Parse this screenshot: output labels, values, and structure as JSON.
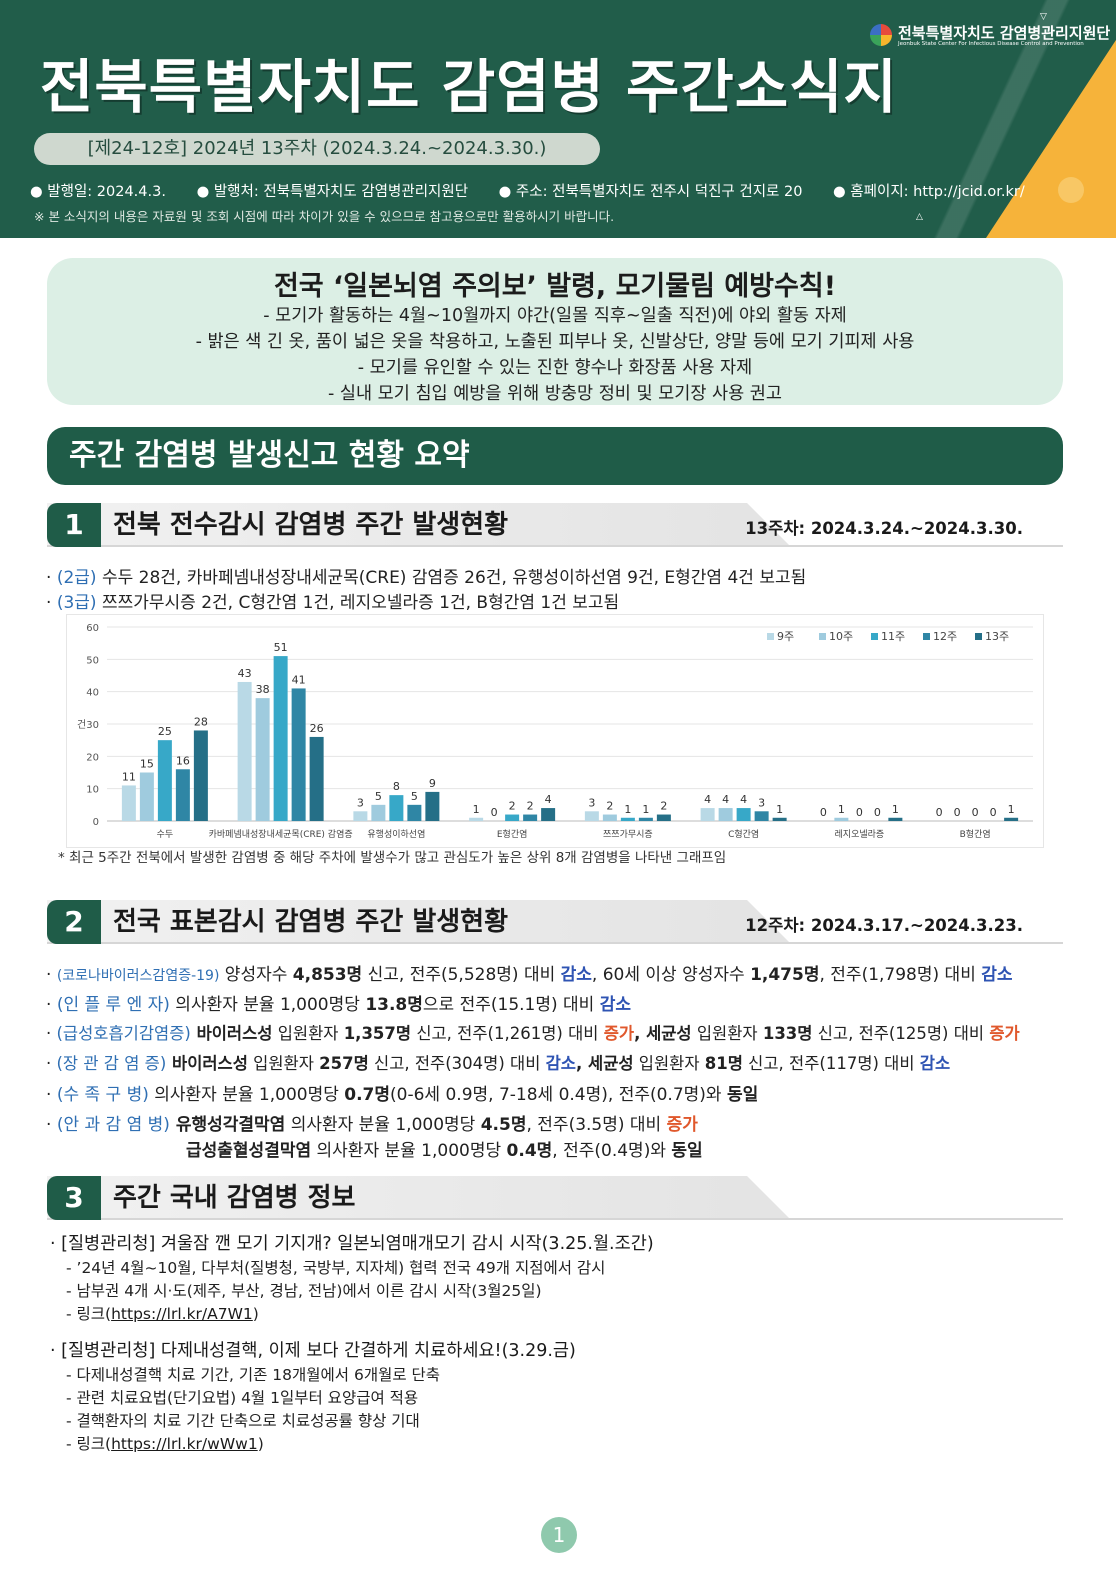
{
  "header": {
    "org_name": "전북특별자치도 감염병관리지원단",
    "org_name_en": "Jeonbuk State Center For Infectious Disease Control and Prevention",
    "title": "전북특별자치도  감염병  주간소식지",
    "issue": "[제24-12호]  2024년  13주차  (2024.3.24.~2024.3.30.)",
    "published": "● 발행일:  2024.4.3.",
    "publisher": "● 발행처:  전북특별자치도  감염병관리지원단",
    "address": "● 주소:  전북특별자치도  전주시  덕진구  건지로  20",
    "homepage": "● 홈페이지:  http://jcid.or.kr/",
    "disclaimer": "※  본  소식지의  내용은  자료원  및  조회  시점에  따라  차이가  있을  수  있으므로  참고용으로만  활용하시기  바랍니다."
  },
  "notice": {
    "title": "전국 ‘일본뇌염 주의보’ 발령, 모기물림 예방수칙!",
    "lines": [
      "- 모기가 활동하는 4월~10월까지 야간(일몰 직후~일출 직전)에 야외 활동 자제",
      "- 밝은 색 긴 옷, 품이 넓은 옷을 착용하고, 노출된 피부나 옷, 신발상단, 양말 등에 모기 기피제 사용",
      "- 모기를 유인할 수 있는 진한 향수나 화장품 사용 자제",
      "- 실내 모기 침입 예방을 위해 방충망 정비 및 모기장 사용 권고"
    ]
  },
  "summary_title": "주간  감염병  발생신고  현황  요약",
  "section1": {
    "num": "1",
    "title": "전북  전수감시  감염병  주간  발생현황",
    "period": "13주차:  2024.3.24.~2024.3.30.",
    "line1_grade": "(2급)",
    "line1_text": " 수두 28건, 카바페넴내성장내세균목(CRE) 감염증 26건, 유행성이하선염 9건, E형간염 4건 보고됨",
    "line2_grade": "(3급)",
    "line2_text": " 쯔쯔가무시증 2건, C형간염 1건, 레지오넬라증 1건, B형간염 1건 보고됨",
    "chart_note": "*  최근  5주간  전북에서  발생한  감염병  중  해당  주차에  발생수가  많고  관심도가  높은  상위  8개  감염병을  나타낸  그래프임"
  },
  "chart_data": {
    "type": "bar",
    "ylabel": "건",
    "ylim": [
      0,
      60
    ],
    "yticks": [
      0,
      10,
      20,
      30,
      40,
      50,
      60
    ],
    "grid": true,
    "legend_position": "top-right",
    "categories": [
      "수두",
      "카바페넴내성장내세균목(CRE) 감염증",
      "유행성이하선염",
      "E형간염",
      "쯔쯔가무시증",
      "C형간염",
      "레지오넬라증",
      "B형간염"
    ],
    "series": [
      {
        "name": "9주",
        "color": "#b9d9e6",
        "values": [
          11,
          43,
          3,
          1,
          3,
          4,
          0,
          0
        ]
      },
      {
        "name": "10주",
        "color": "#9fcbde",
        "values": [
          15,
          38,
          5,
          0,
          2,
          4,
          1,
          0
        ]
      },
      {
        "name": "11주",
        "color": "#37a8c8",
        "values": [
          25,
          51,
          8,
          2,
          1,
          4,
          0,
          0
        ]
      },
      {
        "name": "12주",
        "color": "#2f86a5",
        "values": [
          16,
          41,
          5,
          2,
          1,
          3,
          0,
          0
        ]
      },
      {
        "name": "13주",
        "color": "#256f87",
        "values": [
          28,
          26,
          9,
          4,
          2,
          1,
          1,
          1
        ]
      }
    ]
  },
  "section2": {
    "num": "2",
    "title": "전국  표본감시  감염병  주간  발생현황",
    "period": "12주차:  2024.3.17.~2024.3.23.",
    "rows": [
      {
        "cat": "(코로나바이러스감염증-19)",
        "p1": " 양성자수 ",
        "b1": "4,853명",
        "p2": " 신고, 전주(5,528명) 대비 ",
        "t1": "감소",
        "p3": ", 60세 이상 양성자수 ",
        "b2": "1,475명",
        "p4": ", 전주(1,798명) 대비 ",
        "t2": "감소"
      },
      {
        "cat": "(인 플 루 엔 자)",
        "p1": " 의사환자 분율 1,000명당 ",
        "b1": "13.8명",
        "p2": "으로 전주(15.1명) 대비 ",
        "t1": "감소"
      },
      {
        "cat": "(급성호흡기감염증)",
        "b0": " 바이러스성",
        "p1": " 입원환자 ",
        "b1": "1,357명",
        "p2": " 신고, 전주(1,261명) 대비 ",
        "t1": "증가",
        "b0b": ", 세균성",
        "p3": " 입원환자 ",
        "b2": "133명",
        "p4": " 신고, 전주(125명) 대비 ",
        "t2": "증가"
      },
      {
        "cat": "(장 관 감 염 증)",
        "b0": " 바이러스성",
        "p1": " 입원환자 ",
        "b1": "257명",
        "p2": " 신고, 전주(304명) 대비 ",
        "t1": "감소",
        "b0b": ", 세균성",
        "p3": " 입원환자 ",
        "b2": "81명",
        "p4": " 신고, 전주(117명) 대비 ",
        "t2": "감소"
      },
      {
        "cat": "(수   족   구   병)",
        "p1": " 의사환자 분율 1,000명당 ",
        "b1": "0.7명",
        "p2": "(0-6세 0.9명, 7-18세 0.4명), 전주(0.7명)와 ",
        "t1": "동일"
      },
      {
        "cat": "(안 과 감 염 병)",
        "b0": " 유행성각결막염",
        "p1": " 의사환자 분율 1,000명당 ",
        "b1": "4.5명",
        "p2": ", 전주(3.5명) 대비 ",
        "t1": "증가"
      }
    ],
    "row7": {
      "b0": "급성출혈성결막염",
      "p1": " 의사환자 분율 1,000명당 ",
      "b1": "0.4명",
      "p2": ", 전주(0.4명)와 ",
      "t1": "동일"
    }
  },
  "section3": {
    "num": "3",
    "title": "주간  국내  감염병  정보",
    "item1": {
      "head": "·  [질병관리청]  겨울잠  깬  모기  기지개?  일본뇌염매개모기  감시  시작(3.25.월.조간)",
      "lines": [
        "-  ’24년  4월~10월,  다부처(질병청,  국방부,  지자체)  협력  전국  49개  지점에서  감시",
        "-  남부권  4개  시·도(제주,  부산,  경남,  전남)에서  이른  감시  시작(3월25일)"
      ],
      "link_prefix": "-  링크(",
      "link": "https://lrl.kr/A7W1",
      "link_suffix": ")"
    },
    "item2": {
      "head": "·  [질병관리청]  다제내성결핵,  이제  보다  간결하게  치료하세요!(3.29.금)",
      "lines": [
        "-  다제내성결핵  치료  기간,  기존  18개월에서  6개월로  단축",
        "-  관련  치료요법(단기요법)  4월  1일부터  요양급여  적용",
        "-  결핵환자의  치료  기간  단축으로  치료성공률  향상  기대"
      ],
      "link_prefix": "-  링크(",
      "link": "https://lrl.kr/wWw1",
      "link_suffix": ")"
    }
  },
  "page_number": "1"
}
